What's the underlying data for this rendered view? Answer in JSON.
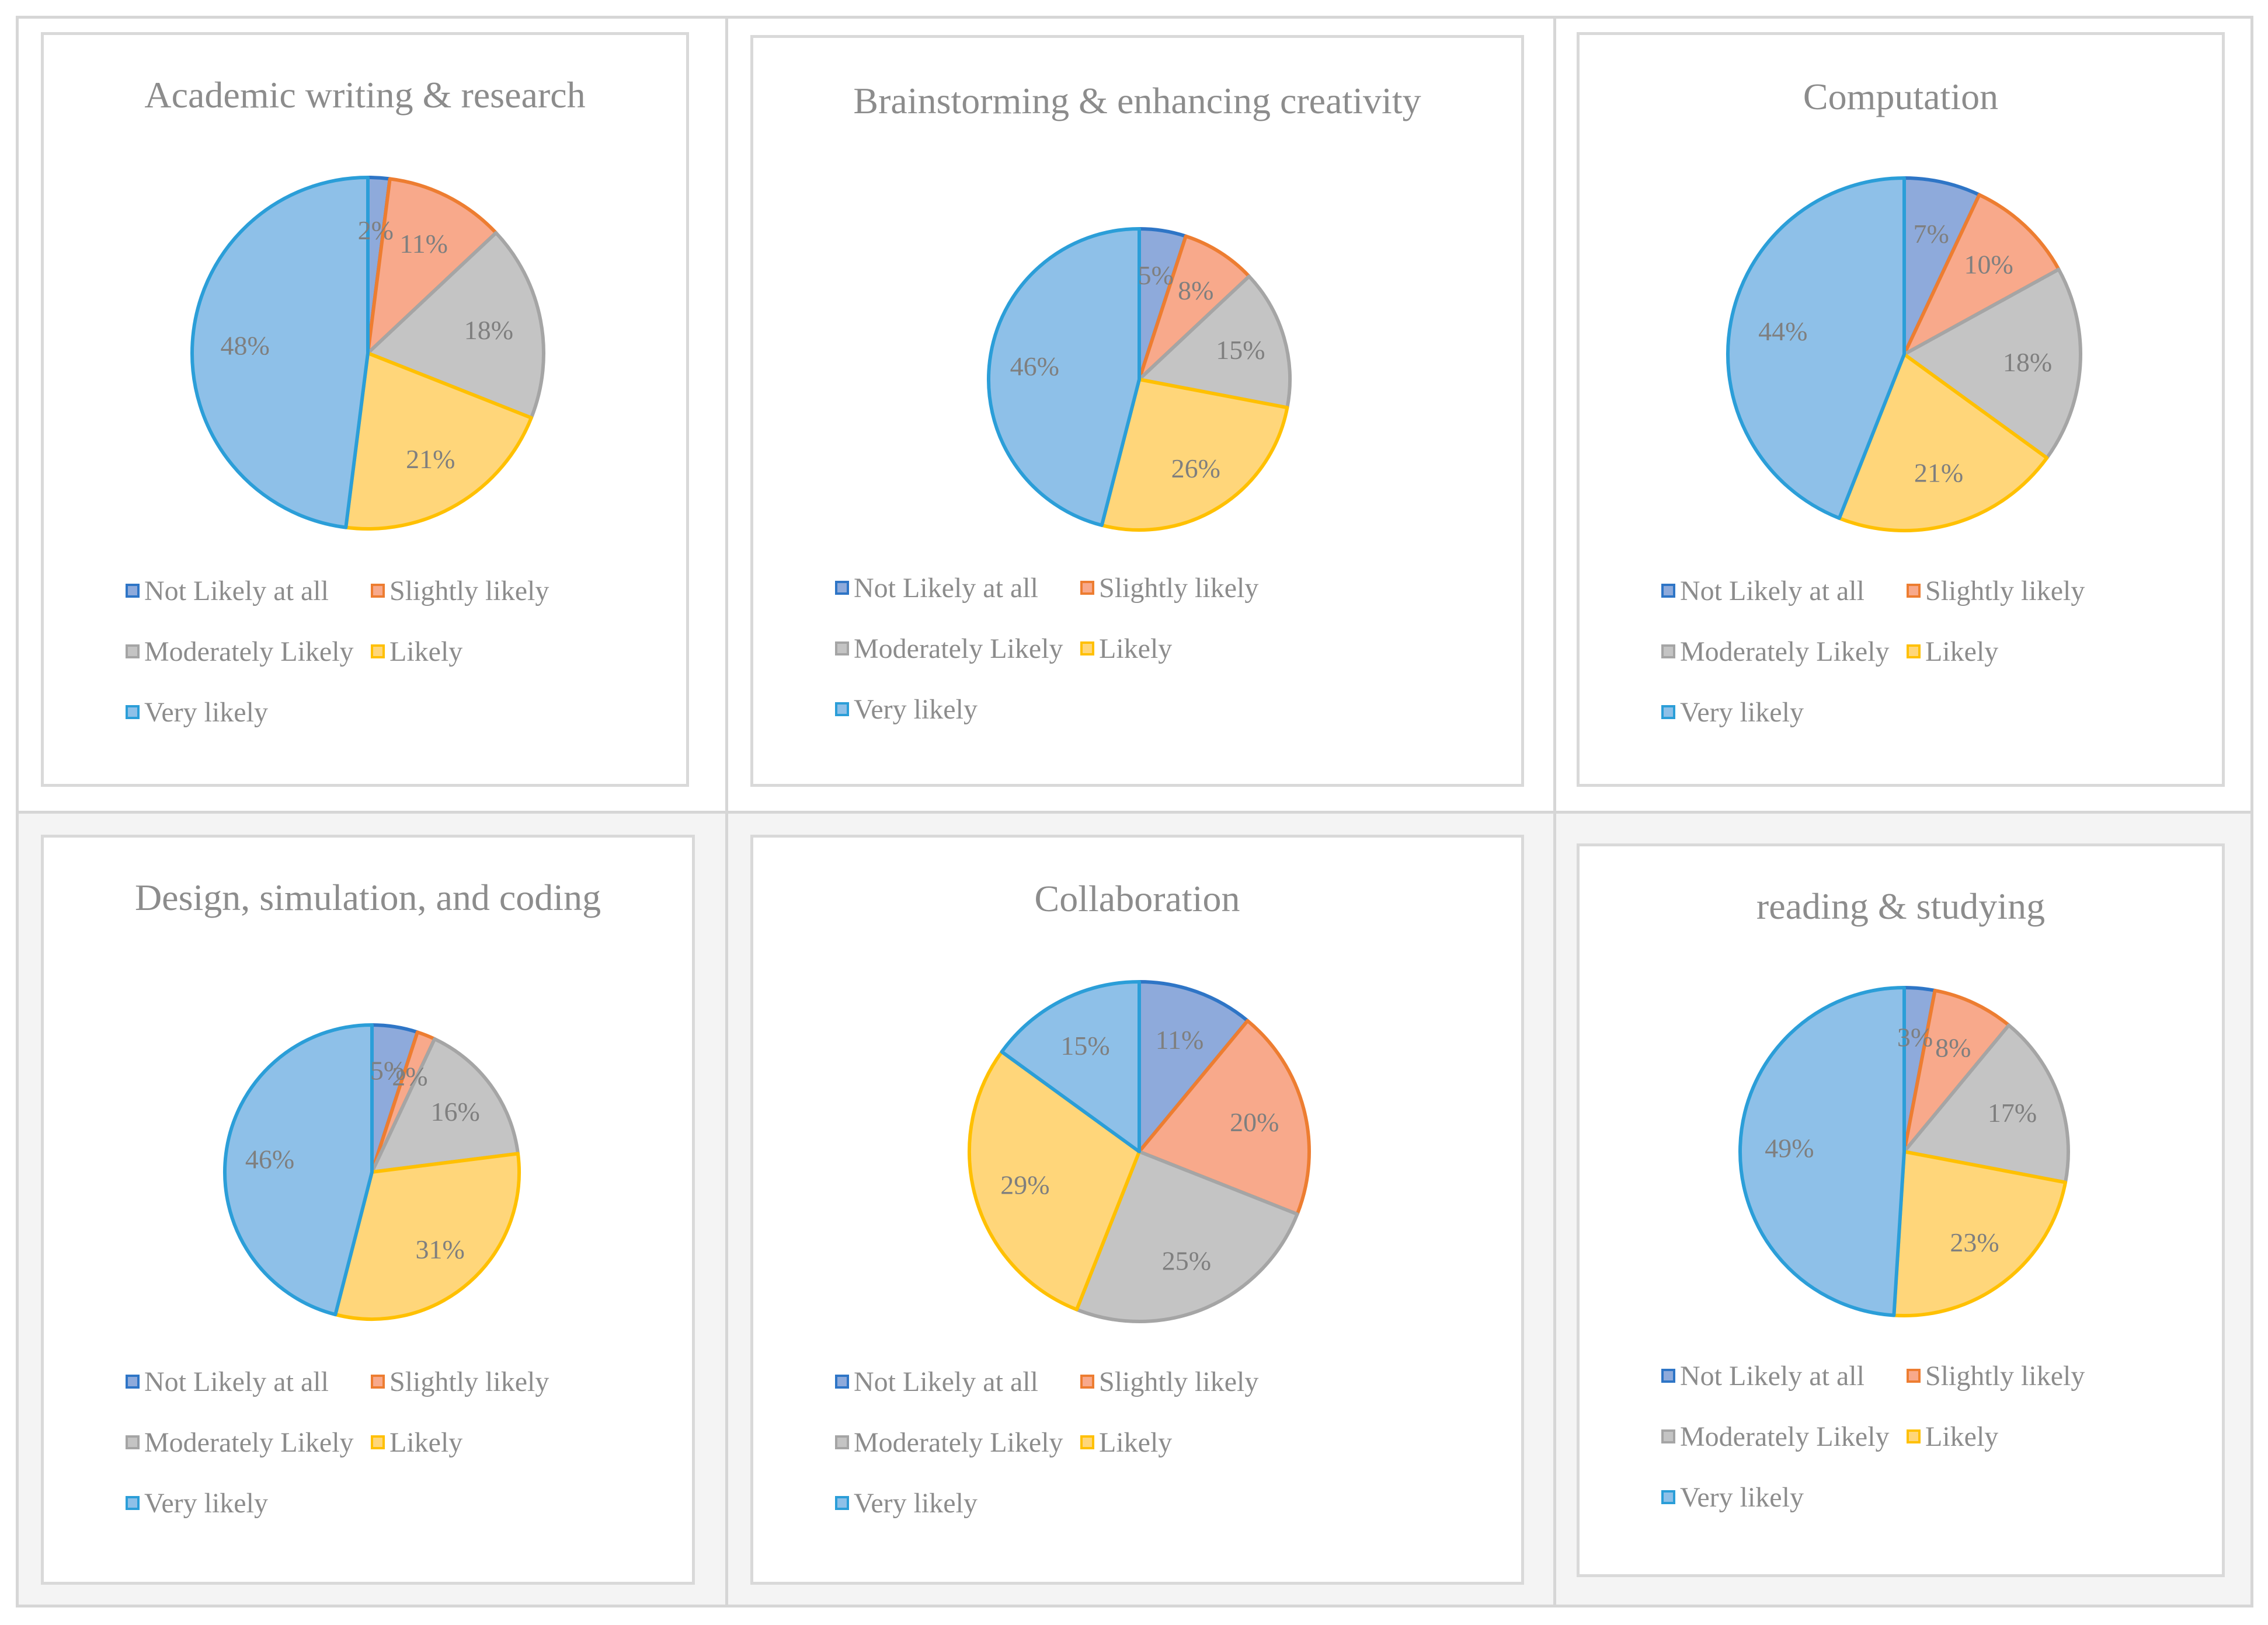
{
  "legend_labels": [
    "Not Likely at all",
    "Slightly likely",
    "Moderately Likely",
    "Likely",
    "Very likely"
  ],
  "colors": {
    "fill": [
      "#8eaadb",
      "#f8a98b",
      "#c4c4c4",
      "#ffd67a",
      "#8ec0e8"
    ],
    "stroke": [
      "#2e75c6",
      "#ed7d31",
      "#a5a5a5",
      "#ffc000",
      "#2b9ed8"
    ],
    "label_text": "#7f7f7f",
    "title_text": "#8c8c8c"
  },
  "chart_data": [
    {
      "type": "pie",
      "title": "Academic writing & research",
      "categories": [
        "Not Likely at all",
        "Slightly likely",
        "Moderately Likely",
        "Likely",
        "Very likely"
      ],
      "values": [
        2,
        11,
        18,
        21,
        48
      ],
      "labels": [
        "2%",
        "11%",
        "18%",
        "21%",
        "48%"
      ]
    },
    {
      "type": "pie",
      "title": "Brainstorming & enhancing creativity",
      "categories": [
        "Not Likely at all",
        "Slightly likely",
        "Moderately Likely",
        "Likely",
        "Very likely"
      ],
      "values": [
        5,
        8,
        15,
        26,
        46
      ],
      "labels": [
        "5%",
        "8%",
        "15%",
        "26%",
        "46%"
      ]
    },
    {
      "type": "pie",
      "title": "Computation",
      "categories": [
        "Not Likely at all",
        "Slightly likely",
        "Moderately Likely",
        "Likely",
        "Very likely"
      ],
      "values": [
        7,
        10,
        18,
        21,
        44
      ],
      "labels": [
        "7%",
        "10%",
        "18%",
        "21%",
        "44%"
      ]
    },
    {
      "type": "pie",
      "title": "Design, simulation, and coding",
      "categories": [
        "Not Likely at all",
        "Slightly likely",
        "Moderately Likely",
        "Likely",
        "Very likely"
      ],
      "values": [
        5,
        2,
        16,
        31,
        46
      ],
      "labels": [
        "5%",
        "2%",
        "16%",
        "31%",
        "46%"
      ]
    },
    {
      "type": "pie",
      "title": "Collaboration",
      "categories": [
        "Not Likely at all",
        "Slightly likely",
        "Moderately Likely",
        "Likely",
        "Very likely"
      ],
      "values": [
        11,
        20,
        25,
        29,
        15
      ],
      "labels": [
        "11%",
        "20%",
        "25%",
        "29%",
        "15%"
      ]
    },
    {
      "type": "pie",
      "title": "reading & studying",
      "categories": [
        "Not Likely at all",
        "Slightly likely",
        "Moderately Likely",
        "Likely",
        "Very likely"
      ],
      "values": [
        3,
        8,
        17,
        23,
        49
      ],
      "labels": [
        "3%",
        "8%",
        "17%",
        "23%",
        "49%"
      ]
    }
  ]
}
